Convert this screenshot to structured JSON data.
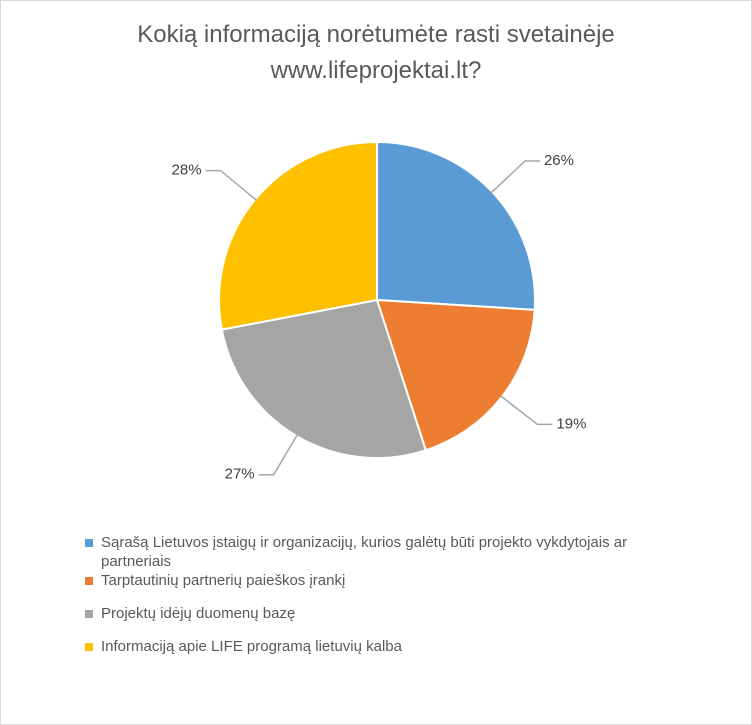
{
  "chart_data": {
    "type": "pie",
    "title": [
      "Kokią informaciją norėtumėte rasti svetainėje",
      "www.lifeprojektai.lt?"
    ],
    "categories": [
      "Sąrašą Lietuvos įstaigų ir organizacijų, kurios galėtų būti projekto vykdytojais ar partneriais",
      "Tarptautinių partnerių paieškos įrankį",
      "Projektų idėjų duomenų bazę",
      "Informaciją apie LIFE programą lietuvių kalba"
    ],
    "values": [
      26,
      19,
      27,
      28
    ],
    "value_labels": [
      "26%",
      "19%",
      "27%",
      "28%"
    ],
    "colors": [
      "#5b9bd5",
      "#ed7d31",
      "#a5a5a5",
      "#ffc000"
    ],
    "legend": "bottom"
  }
}
